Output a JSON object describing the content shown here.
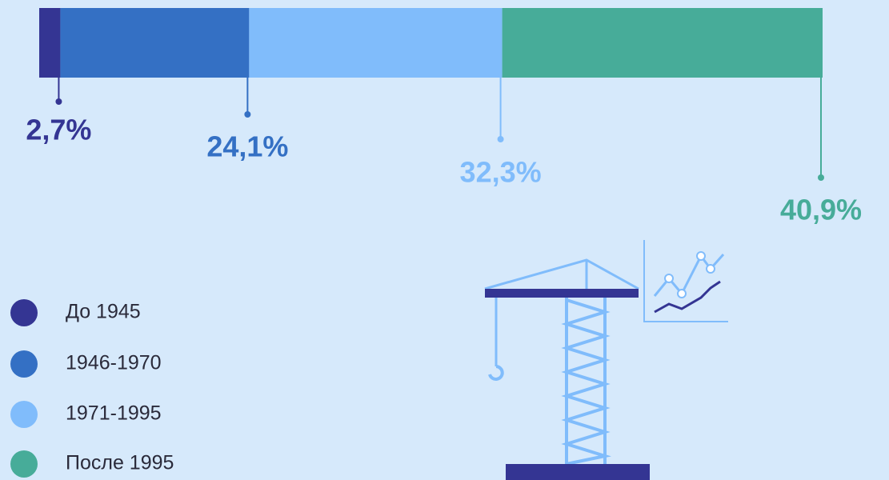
{
  "chart_data": {
    "type": "bar",
    "orientation": "horizontal",
    "stacked": true,
    "xlim": [
      0,
      100
    ],
    "series": [
      {
        "name": "До 1945",
        "color": "#343593",
        "values": [
          2.7
        ],
        "value_labels": [
          "2,7%"
        ]
      },
      {
        "name": "1946-1970",
        "color": "#3470c4",
        "values": [
          24.1
        ],
        "value_labels": [
          "24,1%"
        ]
      },
      {
        "name": "1971-1995",
        "color": "#80bcfb",
        "values": [
          32.3
        ],
        "value_labels": [
          "32,3%"
        ]
      },
      {
        "name": "После 1995",
        "color": "#47ac99",
        "values": [
          40.9
        ],
        "value_labels": [
          "40,9%"
        ]
      }
    ]
  }
}
